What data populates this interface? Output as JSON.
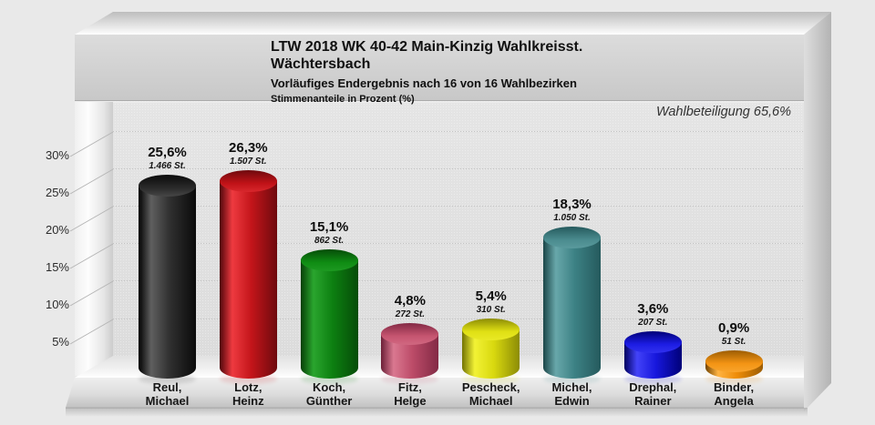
{
  "header": {
    "title_line1": "LTW 2018 WK 40-42 Main-Kinzig Wahlkreisst.",
    "title_line2": "Wächtersbach",
    "subtitle": "Vorläufiges Endergebnis nach 16 von 16 Wahlbezirken",
    "unit_note": "Stimmenanteile in Prozent (%)",
    "turnout_label": "Wahlbeteiligung 65,6%"
  },
  "chart_data": {
    "type": "bar",
    "title": "LTW 2018 WK 40-42 Main-Kinzig Wahlkreisst. Wächtersbach",
    "subtitle": "Vorläufiges Endergebnis nach 16 von 16 Wahlbezirken",
    "ylabel": "Stimmenanteile in Prozent (%)",
    "ylim": [
      0,
      30
    ],
    "grid": true,
    "turnout_percent": 65.6,
    "precincts_reported": "16 von 16",
    "yticks": [
      {
        "label": "30%",
        "value": 30
      },
      {
        "label": "25%",
        "value": 25
      },
      {
        "label": "20%",
        "value": 20
      },
      {
        "label": "15%",
        "value": 15
      },
      {
        "label": "10%",
        "value": 10
      },
      {
        "label": "5%",
        "value": 5
      }
    ],
    "bars": [
      {
        "candidate": "Reul,\nMichael",
        "percent": 25.6,
        "percent_label": "25,6%",
        "votes": 1466,
        "votes_label": "1.466 St.",
        "colors": {
          "left": "#000000",
          "light": "#5f5f5f",
          "main": "#2f2f2f",
          "right": "#0a0a0a",
          "top": "#2a2a2a"
        }
      },
      {
        "candidate": "Lotz,\nHeinz",
        "percent": 26.3,
        "percent_label": "26,3%",
        "votes": 1507,
        "votes_label": "1.507 St.",
        "colors": {
          "left": "#4f060a",
          "light": "#ee3a40",
          "main": "#c4151a",
          "right": "#6e0a0e",
          "top": "#c01217"
        }
      },
      {
        "candidate": "Koch,\nGünther",
        "percent": 15.1,
        "percent_label": "15,1%",
        "votes": 862,
        "votes_label": "862 St.",
        "colors": {
          "left": "#063f07",
          "light": "#2aa52e",
          "main": "#0d8011",
          "right": "#064c08",
          "top": "#0f8c13"
        }
      },
      {
        "candidate": "Fitz,\nHelge",
        "percent": 4.8,
        "percent_label": "4,8%",
        "votes": 272,
        "votes_label": "272 St.",
        "colors": {
          "left": "#6b1f37",
          "light": "#da7890",
          "main": "#bc4b68",
          "right": "#832a45",
          "top": "#c65570"
        }
      },
      {
        "candidate": "Pescheck,\nMichael",
        "percent": 5.4,
        "percent_label": "5,4%",
        "votes": 310,
        "votes_label": "310 St.",
        "colors": {
          "left": "#737303",
          "light": "#f2f235",
          "main": "#d9d90f",
          "right": "#8c8c05",
          "top": "#e0e014"
        }
      },
      {
        "candidate": "Michel,\nEdwin",
        "percent": 18.3,
        "percent_label": "18,3%",
        "votes": 1050,
        "votes_label": "1.050 St.",
        "colors": {
          "left": "#1b4648",
          "light": "#68a7aa",
          "main": "#3c8184",
          "right": "#255a5d",
          "top": "#4a8b8e"
        }
      },
      {
        "candidate": "Drephal,\nRainer",
        "percent": 3.6,
        "percent_label": "3,6%",
        "votes": 207,
        "votes_label": "207 St.",
        "colors": {
          "left": "#000060",
          "light": "#4343f8",
          "main": "#1717dd",
          "right": "#000078",
          "top": "#1d1de4"
        }
      },
      {
        "candidate": "Binder,\nAngela",
        "percent": 0.9,
        "percent_label": "0,9%",
        "votes": 51,
        "votes_label": "51 St.",
        "colors": {
          "left": "#744400",
          "light": "#ffb342",
          "main": "#ee8c08",
          "right": "#9c5c02",
          "top": "#f39414"
        }
      }
    ]
  }
}
